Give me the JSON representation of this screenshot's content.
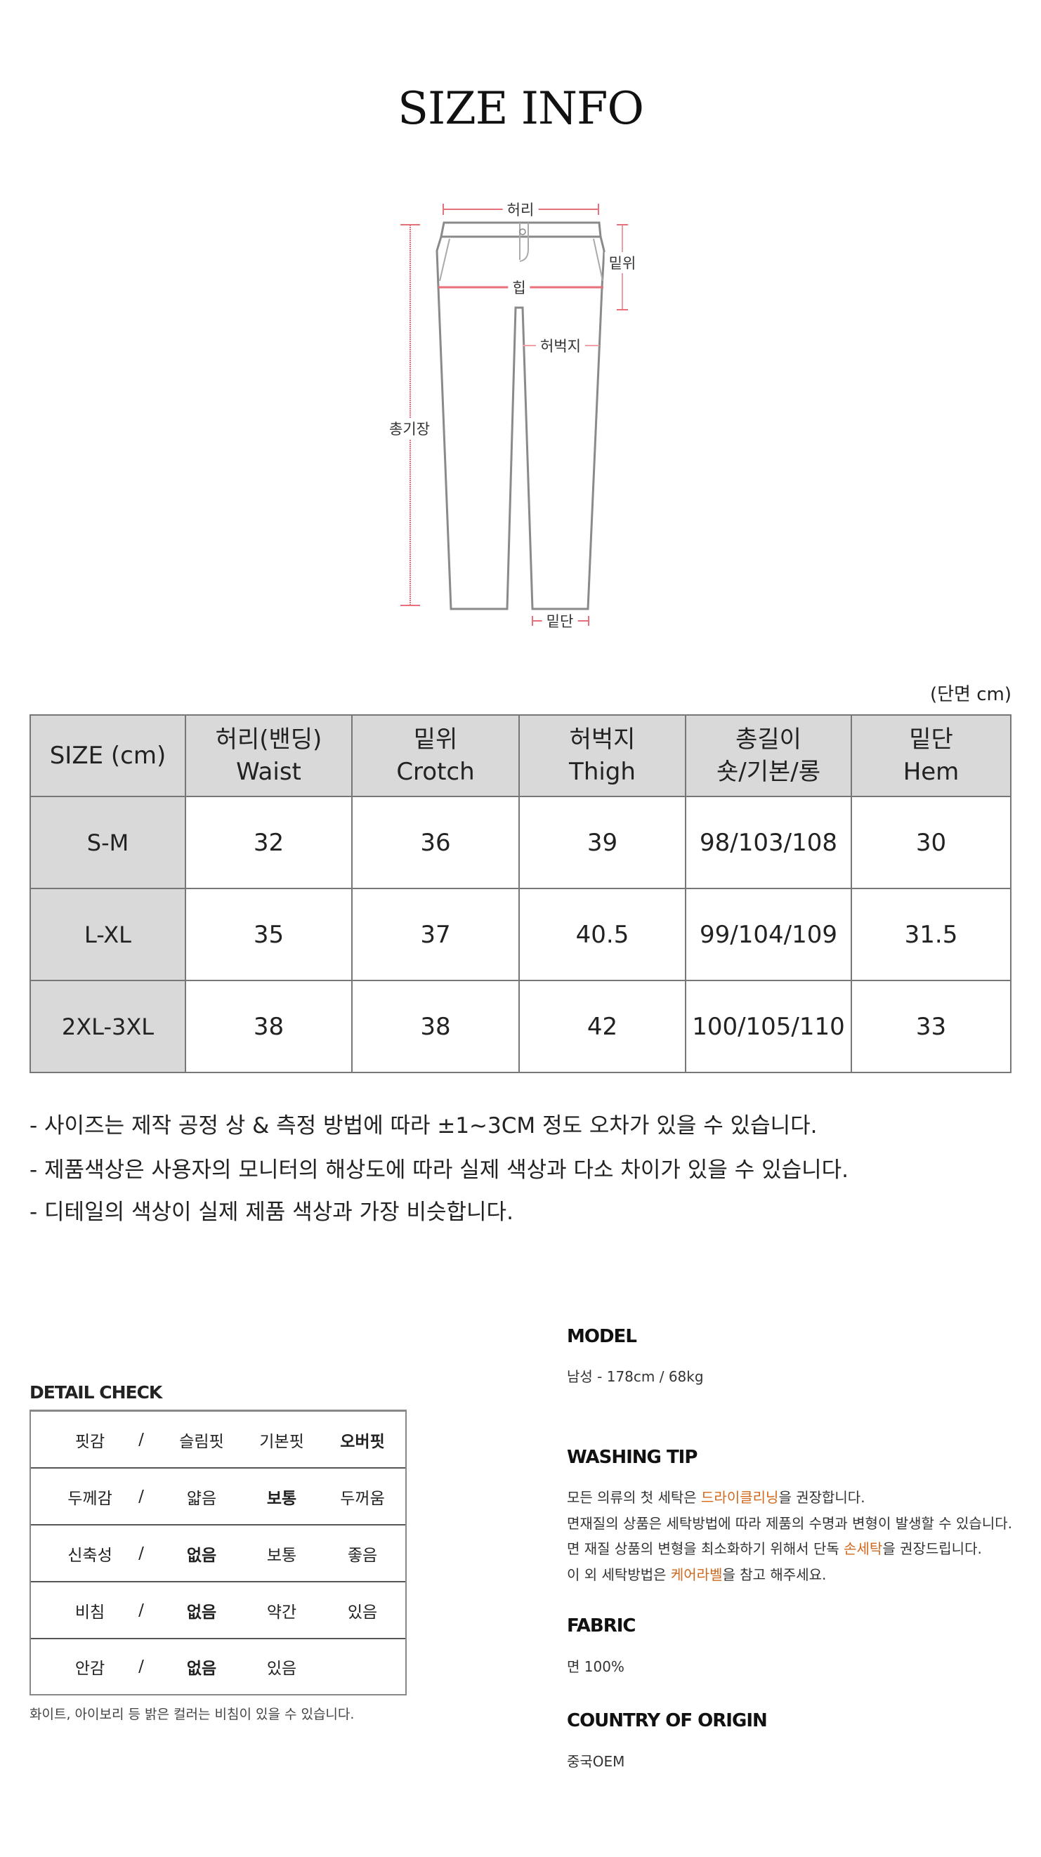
{
  "title": "SIZE INFO",
  "diagram": {
    "waist": "허리",
    "hip": "힙",
    "rise": "밑위",
    "thigh": "허벅지",
    "length": "총기장",
    "hem": "밑단",
    "measure_color": "#e8707a",
    "outline_color": "#8a8a8a"
  },
  "unit_note": "(단면 cm)",
  "size_table": {
    "headers": [
      [
        "SIZE (cm)",
        ""
      ],
      [
        "허리(밴딩)",
        "Waist"
      ],
      [
        "밑위",
        "Crotch"
      ],
      [
        "허벅지",
        "Thigh"
      ],
      [
        "총길이",
        "숏/기본/롱"
      ],
      [
        "밑단",
        "Hem"
      ]
    ],
    "rows": [
      [
        "S-M",
        "32",
        "36",
        "39",
        "98/103/108",
        "30"
      ],
      [
        "L-XL",
        "35",
        "37",
        "40.5",
        "99/104/109",
        "31.5"
      ],
      [
        "2XL-3XL",
        "38",
        "38",
        "42",
        "100/105/110",
        "33"
      ]
    ]
  },
  "notes": [
    "- 사이즈는 제작 공정 상 & 측정 방법에 따라  ±1~3CM 정도 오차가 있을 수 있습니다.",
    "- 제품색상은 사용자의 모니터의 해상도에 따라 실제 색상과 다소 차이가 있을 수 있습니다.",
    "- 디테일의 색상이 실제 제품 색상과 가장 비슷합니다."
  ],
  "detail_check": {
    "title": "DETAIL CHECK",
    "rows": [
      {
        "label": "핏감",
        "sep": "/",
        "options": [
          "슬림핏",
          "기본핏",
          "오버핏"
        ],
        "selected": 2
      },
      {
        "label": "두께감",
        "sep": "/",
        "options": [
          "얇음",
          "보통",
          "두꺼움"
        ],
        "selected": 1
      },
      {
        "label": "신축성",
        "sep": "/",
        "options": [
          "없음",
          "보통",
          "좋음"
        ],
        "selected": 0
      },
      {
        "label": "비침",
        "sep": "/",
        "options": [
          "없음",
          "약간",
          "있음"
        ],
        "selected": 0
      },
      {
        "label": "안감",
        "sep": "/",
        "options": [
          "없음",
          "있음"
        ],
        "selected": 0
      }
    ],
    "footnote": "화이트, 아이보리 등 밝은 컬러는 비침이 있을 수 있습니다."
  },
  "model": {
    "heading": "MODEL",
    "text": "남성 - 178cm / 68kg"
  },
  "washing": {
    "heading": "WASHING TIP",
    "highlight_color": "#d0681e",
    "lines": [
      [
        "모든 의류의 첫 세탁은 ",
        "드라이클리닝",
        "을 권장합니다."
      ],
      [
        "면재질의 상품은 세탁방법에 따라 제품의 수명과 변형이 발생할 수 있습니다.",
        "",
        ""
      ],
      [
        "면 재질 상품의 변형을 최소화하기 위해서 단독 ",
        "손세탁",
        "을 권장드립니다."
      ],
      [
        "이 외 세탁방법은 ",
        "케어라벨",
        "을 참고 해주세요."
      ]
    ]
  },
  "fabric": {
    "heading": "FABRIC",
    "text": "면 100%"
  },
  "origin": {
    "heading": "COUNTRY OF ORIGIN",
    "text": "중국OEM"
  }
}
